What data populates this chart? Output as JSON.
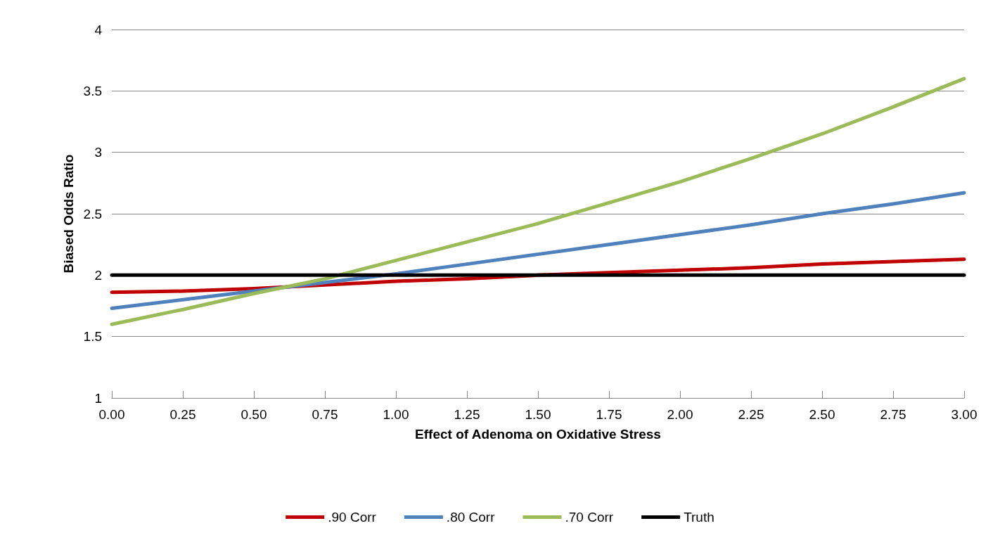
{
  "chart_data": {
    "type": "line",
    "xlabel": "Effect of Adenoma on Oxidative Stress",
    "ylabel": "Biased Odds Ratio",
    "x": [
      0,
      0.25,
      0.5,
      0.75,
      1,
      1.25,
      1.5,
      1.75,
      2,
      2.25,
      2.5,
      2.75,
      3
    ],
    "series": [
      {
        "name": ".90 Corr",
        "color": "#c00000",
        "values": [
          1.86,
          1.87,
          1.89,
          1.92,
          1.95,
          1.97,
          2.0,
          2.02,
          2.04,
          2.06,
          2.09,
          2.11,
          2.13
        ]
      },
      {
        "name": ".80 Corr",
        "color": "#4f81bd",
        "values": [
          1.73,
          1.8,
          1.87,
          1.94,
          2.01,
          2.09,
          2.17,
          2.25,
          2.33,
          2.41,
          2.5,
          2.58,
          2.67
        ]
      },
      {
        "name": ".70 Corr",
        "color": "#9bbb59",
        "values": [
          1.6,
          1.72,
          1.85,
          1.97,
          2.12,
          2.27,
          2.42,
          2.59,
          2.76,
          2.95,
          3.15,
          3.37,
          3.6
        ]
      },
      {
        "name": "Truth",
        "color": "#000000",
        "values": [
          2,
          2,
          2,
          2,
          2,
          2,
          2,
          2,
          2,
          2,
          2,
          2,
          2
        ]
      }
    ],
    "xlim": [
      0,
      3
    ],
    "xticks": [
      {
        "value": 0,
        "label": "0.00"
      },
      {
        "value": 0.25,
        "label": "0.25"
      },
      {
        "value": 0.5,
        "label": "0.50"
      },
      {
        "value": 0.75,
        "label": "0.75"
      },
      {
        "value": 1,
        "label": "1.00"
      },
      {
        "value": 1.25,
        "label": "1.25"
      },
      {
        "value": 1.5,
        "label": "1.50"
      },
      {
        "value": 1.75,
        "label": "1.75"
      },
      {
        "value": 2,
        "label": "2.00"
      },
      {
        "value": 2.25,
        "label": "2.25"
      },
      {
        "value": 2.5,
        "label": "2.50"
      },
      {
        "value": 2.75,
        "label": "2.75"
      },
      {
        "value": 3,
        "label": "3.00"
      }
    ],
    "ylim": [
      1,
      4
    ],
    "yticks": [
      1,
      1.5,
      2,
      2.5,
      3,
      3.5,
      4
    ],
    "grid": "y",
    "legend": "bottom",
    "marker": "none",
    "line_style": "solid"
  }
}
